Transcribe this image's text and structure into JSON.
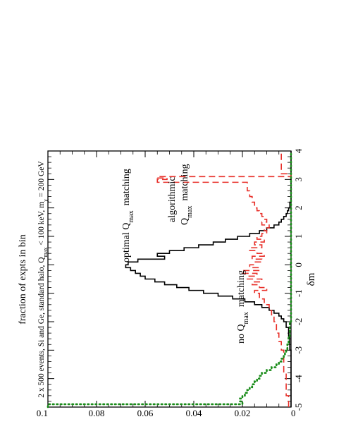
{
  "chart_data": {
    "type": "line",
    "title": "2 x 500 events, Si and Ge, standard halo, Q_max < 100 keV, m_χ = 200 GeV",
    "title_parts": {
      "a": "2 x 500 events, Si and Ge, standard halo, Q",
      "a_sub": "max",
      "b": " < 100 keV, m",
      "b_sub": "χ",
      "c": " = 200 GeV"
    },
    "xlabel": "δm",
    "ylabel": "fraction of expts in bin",
    "xlim": [
      -5,
      4
    ],
    "ylim": [
      0,
      0.1
    ],
    "x_ticks": [
      "-5",
      "-4",
      "-3",
      "-2",
      "-1",
      "0",
      "1",
      "2",
      "3",
      "4"
    ],
    "y_ticks": [
      "0",
      "0.02",
      "0.04",
      "0.06",
      "0.08",
      "0.1"
    ],
    "grid": false,
    "orientation": "rotated 90° counter-clockwise",
    "annotations": [
      {
        "name": "optimal",
        "pre": "optimal Q",
        "sub": "max",
        "post": "  matching",
        "color": "#000000"
      },
      {
        "name": "algorithmic-line1",
        "pre": "algorithmic",
        "sub": "",
        "post": "",
        "color": "#e8302a"
      },
      {
        "name": "algorithmic-line2",
        "pre": "Q",
        "sub": "max",
        "post": "  matching",
        "color": "#e8302a"
      },
      {
        "name": "no",
        "pre": "no Q",
        "sub": "max",
        "post": "  matching",
        "color": "#1a8c1a"
      }
    ],
    "series": [
      {
        "name": "optimal Q_max matching",
        "style": "solid",
        "color": "#000000",
        "x": [
          -5.0,
          -4.5,
          -4.0,
          -3.5,
          -3.0,
          -2.5,
          -2.2,
          -2.0,
          -1.9,
          -1.8,
          -1.7,
          -1.6,
          -1.5,
          -1.4,
          -1.3,
          -1.2,
          -1.1,
          -1.0,
          -0.9,
          -0.8,
          -0.7,
          -0.6,
          -0.5,
          -0.4,
          -0.3,
          -0.2,
          -0.1,
          0.0,
          0.1,
          0.2,
          0.3,
          0.4,
          0.5,
          0.6,
          0.7,
          0.8,
          0.9,
          1.0,
          1.1,
          1.2,
          1.3,
          1.4,
          1.5,
          1.6,
          1.7,
          1.8,
          1.9,
          2.0,
          2.2,
          2.5,
          3.0,
          4.0
        ],
        "y": [
          0.0,
          0.0,
          0.0,
          0.0,
          0.0005,
          0.001,
          0.002,
          0.003,
          0.004,
          0.005,
          0.007,
          0.009,
          0.012,
          0.015,
          0.019,
          0.024,
          0.03,
          0.036,
          0.042,
          0.047,
          0.052,
          0.056,
          0.06,
          0.062,
          0.064,
          0.066,
          0.068,
          0.067,
          0.063,
          0.052,
          0.055,
          0.05,
          0.044,
          0.038,
          0.032,
          0.027,
          0.022,
          0.017,
          0.013,
          0.01,
          0.007,
          0.005,
          0.004,
          0.003,
          0.002,
          0.0015,
          0.001,
          0.0005,
          0.0,
          0.0,
          0.0,
          0.0
        ]
      },
      {
        "name": "algorithmic Q_max matching",
        "style": "dashed",
        "color": "#e8302a",
        "x": [
          -5.0,
          -4.6,
          -4.2,
          -3.8,
          -3.4,
          -3.0,
          -2.7,
          -2.4,
          -2.2,
          -2.0,
          -1.8,
          -1.6,
          -1.4,
          -1.2,
          -1.0,
          -0.9,
          -0.8,
          -0.7,
          -0.6,
          -0.5,
          -0.4,
          -0.3,
          -0.2,
          -0.1,
          0.0,
          0.1,
          0.2,
          0.3,
          0.4,
          0.5,
          0.6,
          0.7,
          0.8,
          0.9,
          1.0,
          1.1,
          1.2,
          1.3,
          1.4,
          1.5,
          1.6,
          1.7,
          1.8,
          1.9,
          2.0,
          2.2,
          2.4,
          2.6,
          2.8,
          2.9,
          3.0,
          3.05,
          3.1,
          3.2,
          3.6,
          4.0
        ],
        "y": [
          0.001,
          0.002,
          0.002,
          0.003,
          0.003,
          0.004,
          0.005,
          0.006,
          0.006,
          0.007,
          0.008,
          0.009,
          0.011,
          0.013,
          0.015,
          0.01,
          0.013,
          0.016,
          0.012,
          0.018,
          0.014,
          0.02,
          0.013,
          0.017,
          0.015,
          0.012,
          0.016,
          0.011,
          0.014,
          0.017,
          0.012,
          0.015,
          0.011,
          0.014,
          0.012,
          0.01,
          0.011,
          0.009,
          0.012,
          0.01,
          0.011,
          0.012,
          0.013,
          0.014,
          0.015,
          0.016,
          0.017,
          0.018,
          0.018,
          0.055,
          0.051,
          0.055,
          0.0,
          0.004,
          0.004,
          0.004
        ]
      },
      {
        "name": "no Q_max matching",
        "style": "dotted",
        "color": "#1a8c1a",
        "x": [
          -5.0,
          -4.95,
          -4.9,
          -4.8,
          -4.7,
          -4.6,
          -4.5,
          -4.4,
          -4.3,
          -4.2,
          -4.1,
          -4.0,
          -3.9,
          -3.8,
          -3.7,
          -3.6,
          -3.5,
          -3.4,
          -3.3,
          -3.2,
          -3.1,
          -3.0,
          -2.8,
          -2.5,
          -2.0
        ],
        "y": [
          0.1,
          0.1,
          0.02,
          0.021,
          0.02,
          0.019,
          0.018,
          0.017,
          0.016,
          0.015,
          0.014,
          0.013,
          0.012,
          0.01,
          0.008,
          0.006,
          0.005,
          0.004,
          0.003,
          0.0025,
          0.002,
          0.0015,
          0.001,
          0.0005,
          0.0
        ]
      }
    ]
  }
}
